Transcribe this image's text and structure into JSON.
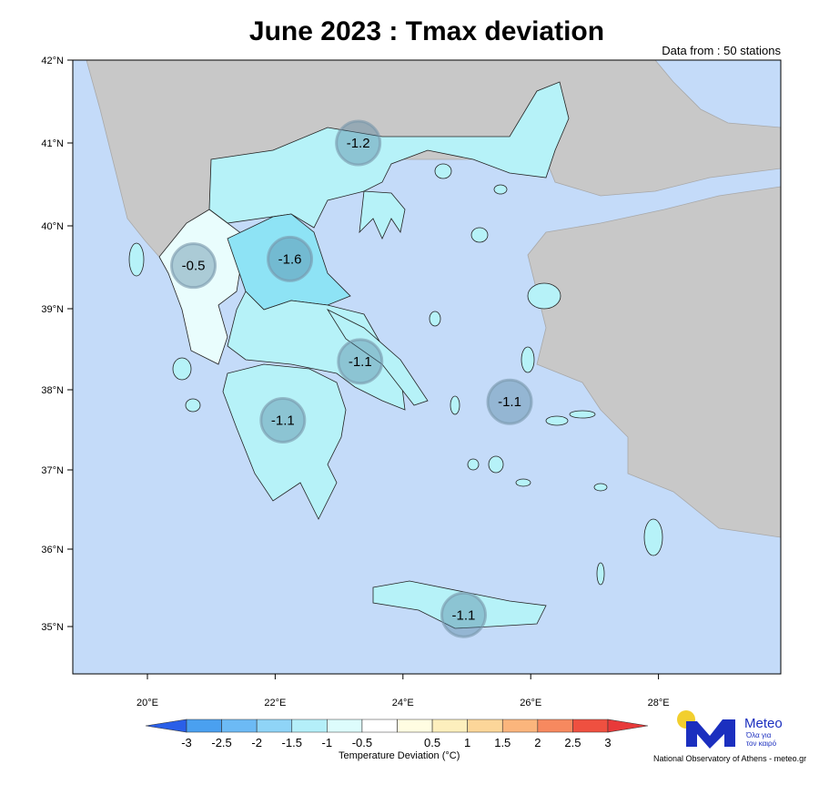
{
  "title": "June 2023 : Tmax deviation",
  "stations_note": "Data from : 50 stations",
  "map": {
    "lat_ticks": [
      "42°N",
      "41°N",
      "40°N",
      "39°N",
      "38°N",
      "37°N",
      "36°N",
      "35°N"
    ],
    "lon_ticks": [
      "20°E",
      "22°E",
      "24°E",
      "26°E",
      "28°E"
    ],
    "colors": {
      "sea": "#c4dbf9",
      "foreign_land": "#c8c8c8",
      "greece_default": "#b6f2f8",
      "epirus": "#e9fdfd",
      "thessaly": "#8ee3f5"
    },
    "region_values": [
      {
        "value": "-1.2",
        "lon": 23.3,
        "lat": 41.0
      },
      {
        "value": "-0.5",
        "lon": 20.72,
        "lat": 39.52
      },
      {
        "value": "-1.6",
        "lon": 22.23,
        "lat": 39.6
      },
      {
        "value": "-1.1",
        "lon": 23.33,
        "lat": 38.35
      },
      {
        "value": "-1.1",
        "lon": 22.12,
        "lat": 37.62
      },
      {
        "value": "-1.1",
        "lon": 25.67,
        "lat": 37.85
      },
      {
        "value": "-1.1",
        "lon": 24.95,
        "lat": 35.15
      }
    ]
  },
  "colorbar": {
    "labels": [
      "-3",
      "-2.5",
      "-2",
      "-1.5",
      "-1",
      "-0.5",
      "0.5",
      "1",
      "1.5",
      "2",
      "2.5",
      "3"
    ],
    "colors": [
      "#4aa0f0",
      "#6cbaf5",
      "#8fd4f7",
      "#b4eff9",
      "#ddfcfc",
      "#ffffff",
      "#fffde2",
      "#fdefbd",
      "#fcd699",
      "#fbb57c",
      "#f7895f",
      "#ef5040"
    ],
    "low_color": "#2a5fe8",
    "high_color": "#e83a3a",
    "title": "Temperature Deviation (°C)"
  },
  "logo": {
    "name": "Meteo",
    "tagline_1": "Όλα για",
    "tagline_2": "τον καιρό",
    "blue": "#1b2fbf",
    "yellow": "#f2cf2e"
  },
  "credit": "National Observatory of Athens - meteo.gr"
}
